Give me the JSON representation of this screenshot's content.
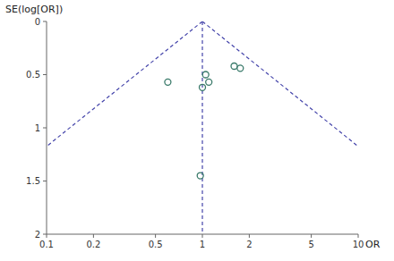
{
  "chart_data": {
    "type": "scatter",
    "title": "",
    "xlabel": "OR",
    "ylabel": "SE(log[OR])",
    "x": [
      0.6,
      1.05,
      1.1,
      1.0,
      1.6,
      1.75,
      0.97
    ],
    "values": [
      0.57,
      0.5,
      0.57,
      0.62,
      0.42,
      0.44,
      1.45
    ],
    "color": "#3a7a6a",
    "marker": "circle-open",
    "log": "x",
    "grid": false,
    "xlim": [
      0.1,
      10
    ],
    "xticks": [
      0.1,
      0.2,
      0.5,
      1,
      2,
      5,
      10
    ],
    "ylim": [
      2.0,
      0.0
    ],
    "yticks": [
      0,
      0.5,
      1,
      1.5,
      2
    ],
    "funnel": {
      "center": 1.0,
      "z": 1.96,
      "se_max": 2.0,
      "color": "#4444aa",
      "line_style": "dashed"
    },
    "vline": {
      "value": 1.0,
      "color": "#4444aa",
      "line_style": "dashed"
    }
  }
}
